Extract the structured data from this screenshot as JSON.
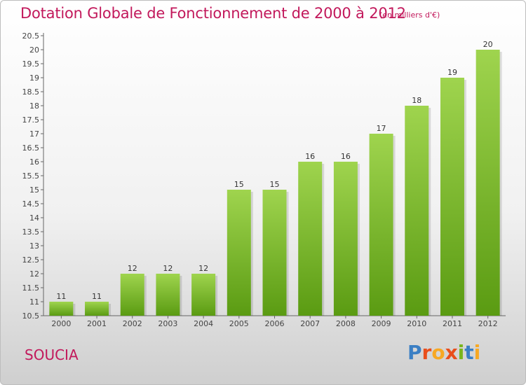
{
  "header": {
    "title": "Dotation Globale de Fonctionnement de 2000 à 2012",
    "subtitle": "(en milliers d'€)"
  },
  "footer": {
    "commune": "SOUCIA",
    "logo_letters": [
      "P",
      "r",
      "o",
      "x",
      "i",
      "t",
      "i"
    ],
    "logo_colors": [
      "#3b7fc4",
      "#e94e1b",
      "#f7a823",
      "#e94e1b",
      "#79b51c",
      "#3b7fc4",
      "#f7a823"
    ]
  },
  "colors": {
    "bar_top": "#9fd44e",
    "bar_bottom": "#5a9b12",
    "axis": "#666666"
  },
  "chart_data": {
    "type": "bar",
    "title": "Dotation Globale de Fonctionnement de 2000 à 2012",
    "subtitle": "(en milliers d'€)",
    "xlabel": "",
    "ylabel": "",
    "categories": [
      "2000",
      "2001",
      "2002",
      "2003",
      "2004",
      "2005",
      "2006",
      "2007",
      "2008",
      "2009",
      "2010",
      "2011",
      "2012"
    ],
    "values": [
      11,
      11,
      12,
      12,
      12,
      15,
      15,
      16,
      16,
      17,
      18,
      19,
      20
    ],
    "ylim": [
      10.5,
      20.5
    ],
    "yticks": [
      "10.5",
      "11",
      "11.5",
      "12",
      "12.5",
      "13",
      "13.5",
      "14",
      "14.5",
      "15",
      "15.5",
      "16",
      "16.5",
      "17",
      "17.5",
      "18",
      "18.5",
      "19",
      "19.5",
      "20",
      "20.5"
    ],
    "grid": false
  }
}
